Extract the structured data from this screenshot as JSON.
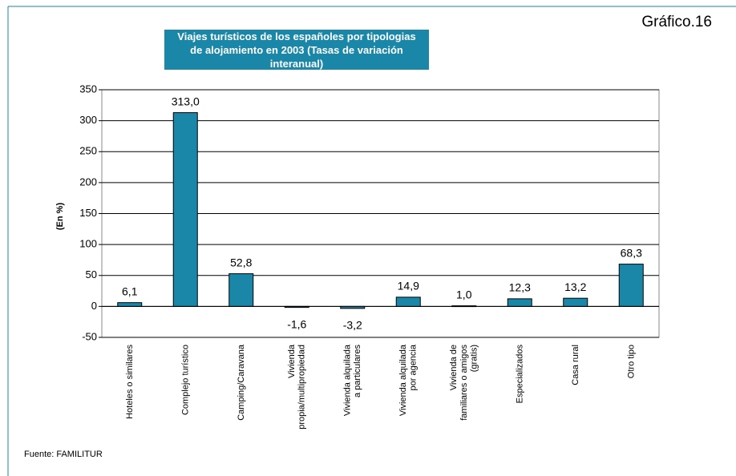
{
  "chart_data": {
    "type": "bar",
    "figure_label": "Gráfico.16",
    "title": "Viajes turísticos de los españoles por tipologias de alojamiento en 2003 (Tasas de variación interanual)",
    "y_label": "(En %)",
    "source": "Fuente: FAMILITUR",
    "categories": [
      "Hoteles o similares",
      "Complejo turístico",
      "Camping/Caravana",
      "Vivienda propia/multipropiedad",
      "Vivienda alquilada a particulares",
      "Vivienda alquilada por agencia",
      "Vivienda de familiares o amigos (gratis)",
      "Especializados",
      "Casa rural",
      "Otro tipo"
    ],
    "values": [
      6.1,
      313.0,
      52.8,
      -1.6,
      -3.2,
      14.9,
      1.0,
      12.3,
      13.2,
      68.3
    ],
    "value_labels": [
      "6,1",
      "313,0",
      "52,8",
      "-1,6",
      "-3,2",
      "14,9",
      "1,0",
      "12,3",
      "13,2",
      "68,3"
    ],
    "color": "#1a87a8",
    "ylim": [
      -50,
      350
    ],
    "yticks": [
      -50,
      0,
      50,
      100,
      150,
      200,
      250,
      300,
      350
    ],
    "grid": true
  }
}
